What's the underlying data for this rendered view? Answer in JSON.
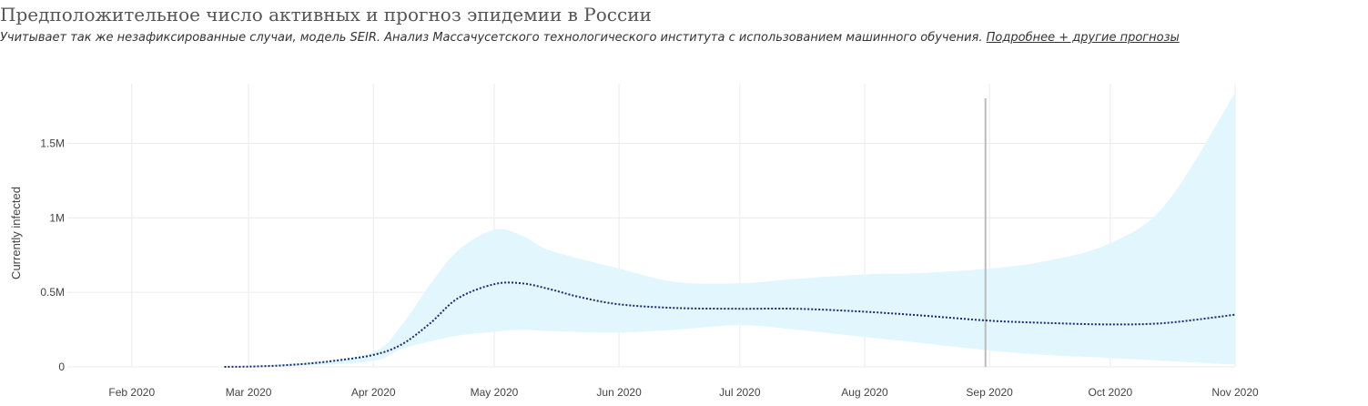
{
  "title": "Предположительное число активных и прогноз эпидемии в России",
  "subtitle": {
    "text": "Учитывает так же незафиксированные случаи, модель SEIR. Анализ Массачусетского технологического института с использованием машинного обучения.",
    "link_text": "Подробнее + другие прогнозы"
  },
  "chart_data": {
    "type": "line",
    "ylabel": "Currently infected",
    "xlim": [
      "2020-01-16",
      "2020-11-01"
    ],
    "ylim": [
      0,
      1900000
    ],
    "yticks": [
      {
        "value": 0,
        "label": "0"
      },
      {
        "value": 500000,
        "label": "0.5M"
      },
      {
        "value": 1000000,
        "label": "1M"
      },
      {
        "value": 1500000,
        "label": "1.5M"
      }
    ],
    "xticks": [
      {
        "date": "2020-02-01",
        "label": "Feb 2020"
      },
      {
        "date": "2020-03-01",
        "label": "Mar 2020"
      },
      {
        "date": "2020-04-01",
        "label": "Apr 2020"
      },
      {
        "date": "2020-05-01",
        "label": "May 2020"
      },
      {
        "date": "2020-06-01",
        "label": "Jun 2020"
      },
      {
        "date": "2020-07-01",
        "label": "Jul 2020"
      },
      {
        "date": "2020-08-01",
        "label": "Aug 2020"
      },
      {
        "date": "2020-09-01",
        "label": "Sep 2020"
      },
      {
        "date": "2020-10-01",
        "label": "Oct 2020"
      },
      {
        "date": "2020-11-01",
        "label": "Nov 2020"
      }
    ],
    "grid": true,
    "vline_date": "2020-08-31",
    "band_color": "#e2f6fd",
    "line_color": "#1a2a6c",
    "vline_color": "#bbbbbb",
    "series": [
      {
        "style": "dotted",
        "x": [
          "2020-02-24",
          "2020-03-01",
          "2020-03-08",
          "2020-03-15",
          "2020-03-22",
          "2020-04-01",
          "2020-04-08",
          "2020-04-15",
          "2020-04-22",
          "2020-05-01",
          "2020-05-08",
          "2020-05-15",
          "2020-05-22",
          "2020-06-01",
          "2020-06-15",
          "2020-07-01",
          "2020-07-15",
          "2020-08-01",
          "2020-08-15",
          "2020-09-01",
          "2020-09-15",
          "2020-10-01",
          "2020-10-15",
          "2020-11-01"
        ],
        "y": [
          0,
          2000,
          8000,
          20000,
          40000,
          80000,
          150000,
          290000,
          460000,
          555000,
          560000,
          520000,
          470000,
          420000,
          395000,
          390000,
          390000,
          370000,
          345000,
          310000,
          295000,
          285000,
          295000,
          350000
        ]
      }
    ],
    "band": {
      "x": [
        "2020-02-24",
        "2020-03-15",
        "2020-04-01",
        "2020-04-08",
        "2020-04-15",
        "2020-04-22",
        "2020-05-01",
        "2020-05-08",
        "2020-05-15",
        "2020-06-01",
        "2020-06-15",
        "2020-07-01",
        "2020-07-15",
        "2020-08-01",
        "2020-08-15",
        "2020-09-01",
        "2020-09-15",
        "2020-10-01",
        "2020-10-15",
        "2020-11-01"
      ],
      "upper": [
        0,
        30000,
        100000,
        280000,
        550000,
        780000,
        920000,
        880000,
        780000,
        660000,
        570000,
        560000,
        590000,
        620000,
        630000,
        660000,
        710000,
        830000,
        1100000,
        1840000
      ],
      "lower": [
        0,
        10000,
        40000,
        120000,
        170000,
        210000,
        235000,
        250000,
        240000,
        230000,
        250000,
        280000,
        250000,
        200000,
        160000,
        110000,
        80000,
        60000,
        40000,
        15000
      ]
    }
  }
}
